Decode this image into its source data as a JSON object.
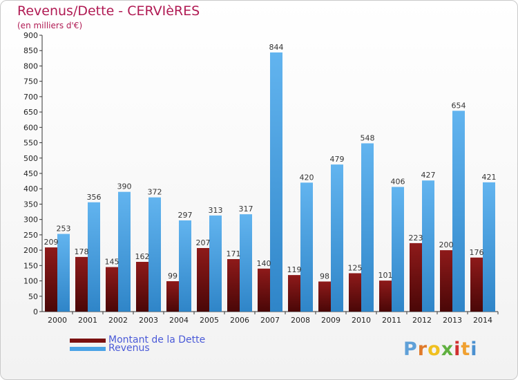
{
  "header": {
    "title": "Revenus/Dette - CERVIèRES",
    "subtitle": "(en milliers d'€)"
  },
  "legend": {
    "items": [
      {
        "label": "Montant de la Dette",
        "color": "#7a1010"
      },
      {
        "label": "Revenus",
        "color": "#4aa3e6"
      }
    ]
  },
  "logo": {
    "letters": [
      "P",
      "r",
      "o",
      "x",
      "i",
      "t",
      "i"
    ],
    "colors": [
      "#5fa0d8",
      "#e07a2a",
      "#f0c020",
      "#60b040",
      "#d03030",
      "#f0a030",
      "#4a90d0"
    ]
  },
  "colors": {
    "title": "#b01a53",
    "legend_text": "#4a5ad8",
    "debt_top": "#8e1a1a",
    "debt_bottom": "#4a0707",
    "revenue_top": "#62b4ef",
    "revenue_bottom": "#2f85c8",
    "axis": "#333333",
    "grid": "#dddddd"
  },
  "chart_data": {
    "type": "bar",
    "title": "Revenus/Dette - CERVIèRES",
    "ylabel": "(en milliers d'€)",
    "categories": [
      "2000",
      "2001",
      "2002",
      "2003",
      "2004",
      "2005",
      "2006",
      "2007",
      "2008",
      "2009",
      "2010",
      "2011",
      "2012",
      "2013",
      "2014"
    ],
    "series": [
      {
        "name": "Montant de la Dette",
        "values": [
          209,
          178,
          145,
          162,
          99,
          207,
          171,
          140,
          119,
          98,
          125,
          101,
          223,
          200,
          176
        ]
      },
      {
        "name": "Revenus",
        "values": [
          253,
          356,
          390,
          372,
          297,
          313,
          317,
          844,
          420,
          479,
          548,
          406,
          427,
          654,
          421
        ]
      }
    ],
    "ylim": [
      0,
      900
    ],
    "yticks": [
      0,
      50,
      100,
      150,
      200,
      250,
      300,
      350,
      400,
      450,
      500,
      550,
      600,
      650,
      700,
      750,
      800,
      850,
      900
    ],
    "grid": false,
    "legend_position": "bottom-left"
  }
}
